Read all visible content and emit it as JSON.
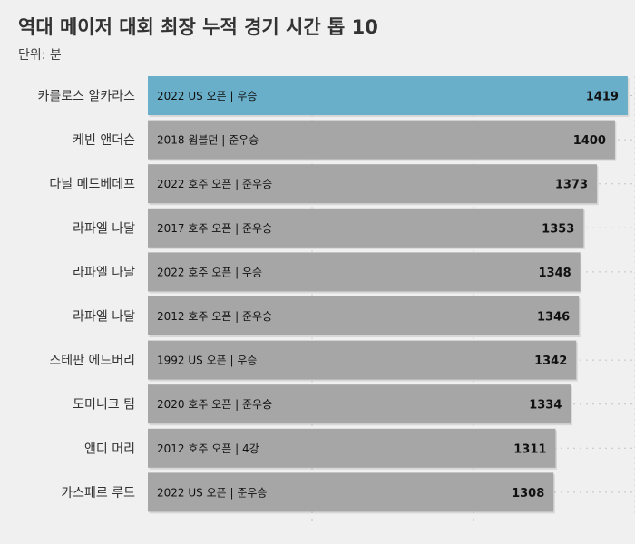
{
  "chart_data": {
    "type": "bar",
    "orientation": "horizontal",
    "title": "역대 메이저 대회 최장 누적 경기 시간 톱 10",
    "subtitle": "단위: 분",
    "categories": [
      "카를로스 알카라스",
      "케빈 앤더슨",
      "다닐 메드베데프",
      "라파엘 나달",
      "라파엘 나달",
      "라파엘 나달",
      "스테판 에드버리",
      "도미니크 팀",
      "앤디 머리",
      "카스페르 루드"
    ],
    "annotations": [
      "2022 US 오픈 | 우승",
      "2018 윔블던 | 준우승",
      "2022 호주 오픈 | 준우승",
      "2017 호주 오픈 | 준우승",
      "2022 호주 오픈 | 우승",
      "2012 호주 오픈 | 준우승",
      "1992 US 오픈 | 우승",
      "2020 호주 오픈 | 준우승",
      "2012 호주 오픈 | 4강",
      "2022 US 오픈 | 준우승"
    ],
    "values": [
      1419,
      1400,
      1373,
      1353,
      1348,
      1346,
      1342,
      1334,
      1311,
      1308
    ],
    "highlight_index": 0,
    "xlim": [
      700,
      1430
    ],
    "grid": true,
    "colors": {
      "highlight": "#6aafc9",
      "default": "#a6a6a6"
    }
  }
}
